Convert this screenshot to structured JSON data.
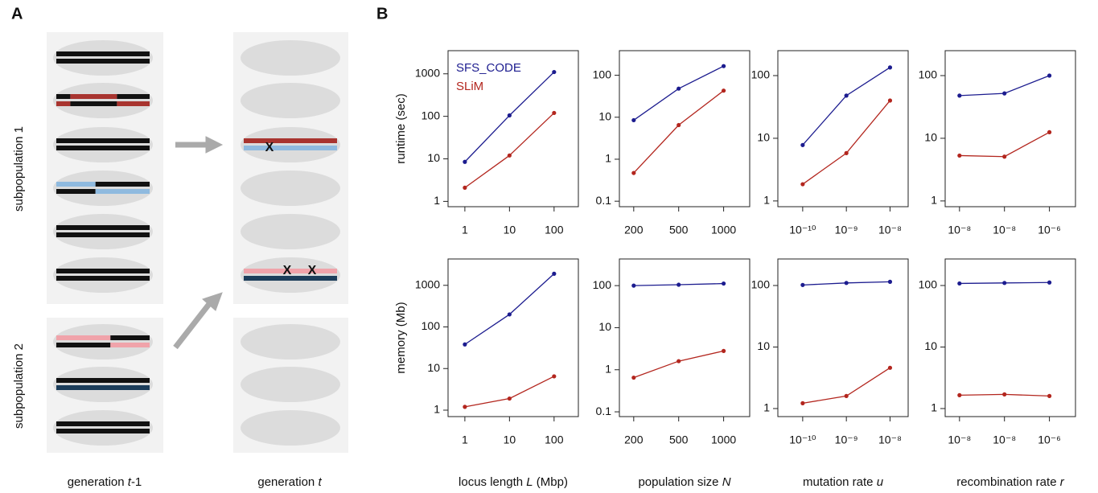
{
  "panel_a": {
    "label": "A",
    "subpop_labels": [
      "subpopulation  1",
      "subpopulation  2"
    ],
    "generation_labels": [
      [
        "generation ",
        "t",
        "-1"
      ],
      [
        "generation ",
        "t"
      ]
    ],
    "mutation_marks": [
      "X",
      "X",
      "X"
    ]
  },
  "panel_b": {
    "label": "B"
  },
  "chart_data": [
    {
      "type": "line",
      "logx": true,
      "logy": true,
      "ylabel": "runtime (sec)",
      "legend": "upper left",
      "x": [
        1,
        10,
        100
      ],
      "xlim": [
        0.42,
        350
      ],
      "xticks": [
        1,
        10,
        100
      ],
      "ylim": [
        0.75,
        3500
      ],
      "yticks": [
        1,
        10,
        100,
        1000
      ],
      "series": [
        {
          "name": "SFS_CODE",
          "color": "#1c1c8f",
          "values": [
            8.5,
            105,
            1100
          ]
        },
        {
          "name": "SLiM",
          "color": "#b3261e",
          "values": [
            2.1,
            12,
            120
          ]
        }
      ]
    },
    {
      "type": "line",
      "logy": true,
      "categories": [
        "200",
        "500",
        "1000"
      ],
      "ylim": [
        0.074,
        385
      ],
      "yticks": [
        0.1,
        1,
        10,
        100
      ],
      "series": [
        {
          "name": "SFS_CODE",
          "color": "#1c1c8f",
          "values": [
            8.5,
            48,
            165
          ]
        },
        {
          "name": "SLiM",
          "color": "#b3261e",
          "values": [
            0.47,
            6.5,
            43
          ]
        }
      ]
    },
    {
      "type": "line",
      "logx": true,
      "logy": true,
      "x": [
        1e-10,
        1e-09,
        1e-08
      ],
      "xlim": [
        2.7e-11,
        2.6e-08
      ],
      "xticks": [
        {
          "value": 1e-10,
          "label": "10⁻¹⁰"
        },
        {
          "value": 1e-09,
          "label": "10⁻⁹"
        },
        {
          "value": 1e-08,
          "label": "10⁻⁸"
        }
      ],
      "ylim": [
        0.81,
        250
      ],
      "yticks": [
        1,
        10,
        100
      ],
      "series": [
        {
          "name": "SFS_CODE",
          "color": "#1c1c8f",
          "values": [
            7.8,
            48,
            135
          ]
        },
        {
          "name": "SLiM",
          "color": "#b3261e",
          "values": [
            1.85,
            5.8,
            40
          ]
        }
      ]
    },
    {
      "type": "line",
      "logy": true,
      "categories": [
        "10⁻⁸",
        "10⁻⁸",
        "10⁻⁶"
      ],
      "ylim": [
        0.81,
        250
      ],
      "yticks": [
        1,
        10,
        100
      ],
      "series": [
        {
          "name": "SFS_CODE",
          "color": "#1c1c8f",
          "values": [
            48,
            52,
            100
          ]
        },
        {
          "name": "SLiM",
          "color": "#b3261e",
          "values": [
            5.3,
            5.1,
            12.5
          ]
        }
      ]
    },
    {
      "type": "line",
      "logx": true,
      "logy": true,
      "ylabel": "memory (Mb)",
      "xlabel": [
        "locus length ",
        "L",
        " (Mbp)"
      ],
      "x": [
        1,
        10,
        100
      ],
      "xlim": [
        0.42,
        350
      ],
      "xticks": [
        1,
        10,
        100
      ],
      "ylim": [
        0.7,
        4300
      ],
      "yticks": [
        1,
        10,
        100,
        1000
      ],
      "series": [
        {
          "name": "SFS_CODE",
          "color": "#1c1c8f",
          "values": [
            38,
            200,
            1900
          ]
        },
        {
          "name": "SLiM",
          "color": "#b3261e",
          "values": [
            1.2,
            1.9,
            6.5
          ]
        }
      ]
    },
    {
      "type": "line",
      "logy": true,
      "xlabel": [
        "population size ",
        "N"
      ],
      "categories": [
        "200",
        "500",
        "1000"
      ],
      "ylim": [
        0.077,
        430
      ],
      "yticks": [
        0.1,
        1,
        10,
        100
      ],
      "series": [
        {
          "name": "SFS_CODE",
          "color": "#1c1c8f",
          "values": [
            100,
            105,
            112
          ]
        },
        {
          "name": "SLiM",
          "color": "#b3261e",
          "values": [
            0.65,
            1.6,
            2.8
          ]
        }
      ]
    },
    {
      "type": "line",
      "logx": true,
      "logy": true,
      "xlabel": [
        "mutation rate ",
        "u"
      ],
      "x": [
        1e-10,
        1e-09,
        1e-08
      ],
      "xlim": [
        2.7e-11,
        2.6e-08
      ],
      "xticks": [
        {
          "value": 1e-10,
          "label": "10⁻¹⁰"
        },
        {
          "value": 1e-09,
          "label": "10⁻⁹"
        },
        {
          "value": 1e-08,
          "label": "10⁻⁸"
        }
      ],
      "ylim": [
        0.74,
        270
      ],
      "yticks": [
        1,
        10,
        100
      ],
      "series": [
        {
          "name": "SFS_CODE",
          "color": "#1c1c8f",
          "values": [
            102,
            110,
            115
          ]
        },
        {
          "name": "SLiM",
          "color": "#b3261e",
          "values": [
            1.22,
            1.6,
            4.6
          ]
        }
      ]
    },
    {
      "type": "line",
      "logy": true,
      "xlabel": [
        "recombination rate ",
        "r"
      ],
      "categories": [
        "10⁻⁸",
        "10⁻⁸",
        "10⁻⁶"
      ],
      "ylim": [
        0.74,
        270
      ],
      "yticks": [
        1,
        10,
        100
      ],
      "series": [
        {
          "name": "SFS_CODE",
          "color": "#1c1c8f",
          "values": [
            108,
            110,
            112
          ]
        },
        {
          "name": "SLiM",
          "color": "#b3261e",
          "values": [
            1.65,
            1.7,
            1.6
          ]
        }
      ]
    }
  ]
}
